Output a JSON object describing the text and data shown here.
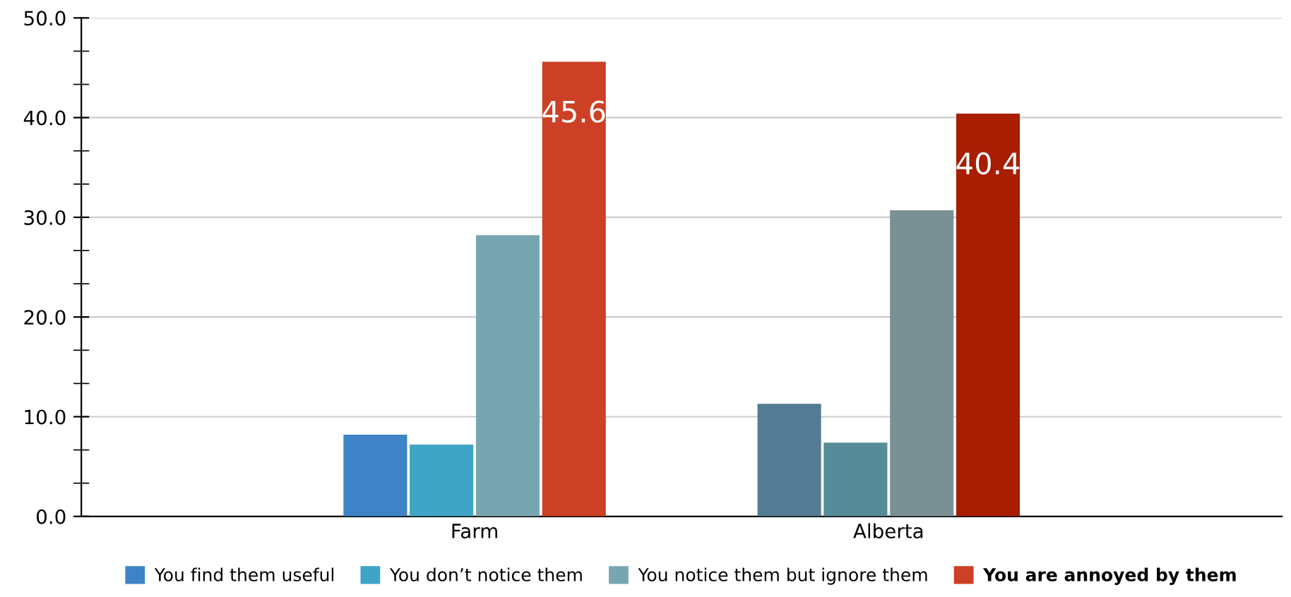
{
  "chart_data": {
    "type": "bar",
    "categories": [
      "Farm",
      "Alberta"
    ],
    "series": [
      {
        "name": "You find them useful",
        "color": "#3e83c6",
        "colors": [
          "#3e83c6",
          "#557b94"
        ],
        "values": [
          8.2,
          11.3
        ]
      },
      {
        "name": "You don’t notice them",
        "color": "#3fa5c6",
        "colors": [
          "#3fa5c6",
          "#578b97"
        ],
        "values": [
          7.2,
          7.4
        ]
      },
      {
        "name": "You notice them but ignore them",
        "color": "#78a6b0",
        "colors": [
          "#78a6b0",
          "#7a9095"
        ],
        "values": [
          28.2,
          30.7
        ]
      },
      {
        "name": "You are annoyed by them",
        "color": "#cc4025",
        "colors": [
          "#cc4025",
          "#a71e02"
        ],
        "values": [
          45.6,
          40.4
        ],
        "value_labels": [
          "45.6",
          "40.4"
        ]
      }
    ],
    "ylim": [
      0,
      50
    ],
    "yticks": [
      {
        "value": 0,
        "label": "0.0"
      },
      {
        "value": 10,
        "label": "10.0"
      },
      {
        "value": 20,
        "label": "20.0"
      },
      {
        "value": 30,
        "label": "30.0"
      },
      {
        "value": 40,
        "label": "40.0"
      },
      {
        "value": 50,
        "label": "50.0"
      }
    ],
    "grid": "y",
    "legend": "bottom"
  }
}
